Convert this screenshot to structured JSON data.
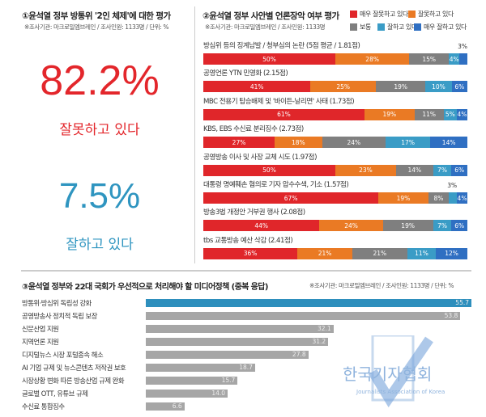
{
  "panel1": {
    "title": "①윤석열 정부 방통위 '2인 체제'에 대한 평가",
    "note": "※조사기관: 마크로밀엠브레인 / 조사인원: 1133명 / 단위: %",
    "bad_value": "82.2%",
    "bad_label": "잘못하고 있다",
    "good_value": "7.5%",
    "good_label": "잘하고 있다",
    "bad_color": "#e3262b",
    "good_color": "#2f95c0"
  },
  "chart_data": [
    {
      "type": "bar",
      "stacked": true,
      "orientation": "horizontal",
      "title": "②윤석열 정부 사안별 언론장악 여부 평가",
      "note": "※조사기관: 마크로밀엠브레인 / 조사인원: 1133명",
      "legend": [
        {
          "name": "매우 잘못하고 있다",
          "color": "#e0262a"
        },
        {
          "name": "잘못하고 있다",
          "color": "#ea7a24"
        },
        {
          "name": "보통",
          "color": "#7f7f7f"
        },
        {
          "name": "잘하고 있다",
          "color": "#3a9cc6"
        },
        {
          "name": "매우 잘하고 있다",
          "color": "#2f6fc2"
        }
      ],
      "categories": [
        "방심위 등의 징계남발 / 청부심의 논란 (5점 평균 / 1.81점)",
        "공영언론 YTN 민영화 (2.15점)",
        "MBC 전용기 탑승배제 및 '바이든-날리면' 사태 (1.73점)",
        "KBS, EBS 수신료 분리징수 (2.73점)",
        "공영방송 이사 및 사장 교체 시도 (1.97점)",
        "대통령 명예훼손 혐의로 기자 압수수색, 기소 (1.57점)",
        "방송3법 개정안 거부권 행사 (2.08점)",
        "tbs 교통방송 예산 삭감 (2.41점)"
      ],
      "series": [
        {
          "name": "매우 잘못하고 있다",
          "values": [
            50,
            41,
            61,
            27,
            50,
            67,
            44,
            36
          ]
        },
        {
          "name": "잘못하고 있다",
          "values": [
            28,
            25,
            19,
            18,
            23,
            19,
            24,
            21
          ]
        },
        {
          "name": "보통",
          "values": [
            15,
            19,
            11,
            24,
            14,
            8,
            19,
            21
          ]
        },
        {
          "name": "잘하고 있다",
          "values": [
            4,
            10,
            5,
            17,
            7,
            3,
            7,
            11
          ]
        },
        {
          "name": "매우 잘하고 있다",
          "values": [
            3,
            6,
            4,
            14,
            6,
            4,
            6,
            12
          ]
        }
      ],
      "unit": "%"
    },
    {
      "type": "bar",
      "orientation": "horizontal",
      "title": "③윤석열 정부와 22대 국회가 우선적으로 처리해야 할 미디어정책 (중복 응답)",
      "note": "※조사기관: 마크로밀엠브레인 / 조사인원: 1133명 / 단위: %",
      "categories": [
        "방통위·방심위 독립성 강화",
        "공영방송사 정치적 독립 보장",
        "신문산업 지원",
        "지역언론 지원",
        "디지털뉴스 시장 포털종속 해소",
        "AI 기업 규제 및 뉴스콘텐츠 저작권 보호",
        "시장상황 변화 따른 방송산업 규제 완화",
        "글로벌 OTT, 유튜브 규제",
        "수신료 통합징수"
      ],
      "values": [
        55.7,
        53.8,
        32.1,
        31.2,
        27.8,
        18.7,
        15.7,
        14.0,
        6.6
      ],
      "value_labels": [
        "55.7",
        "53.8",
        "32.1",
        "31.2",
        "27.8",
        "18.7",
        "15.7",
        "14.0",
        "6.6"
      ],
      "highlight_color": "#2e8fbd",
      "bar_color": "#a6a6a6"
    }
  ],
  "watermark": {
    "name": "한국기자협회",
    "sub": "Journalists Association of Korea"
  }
}
